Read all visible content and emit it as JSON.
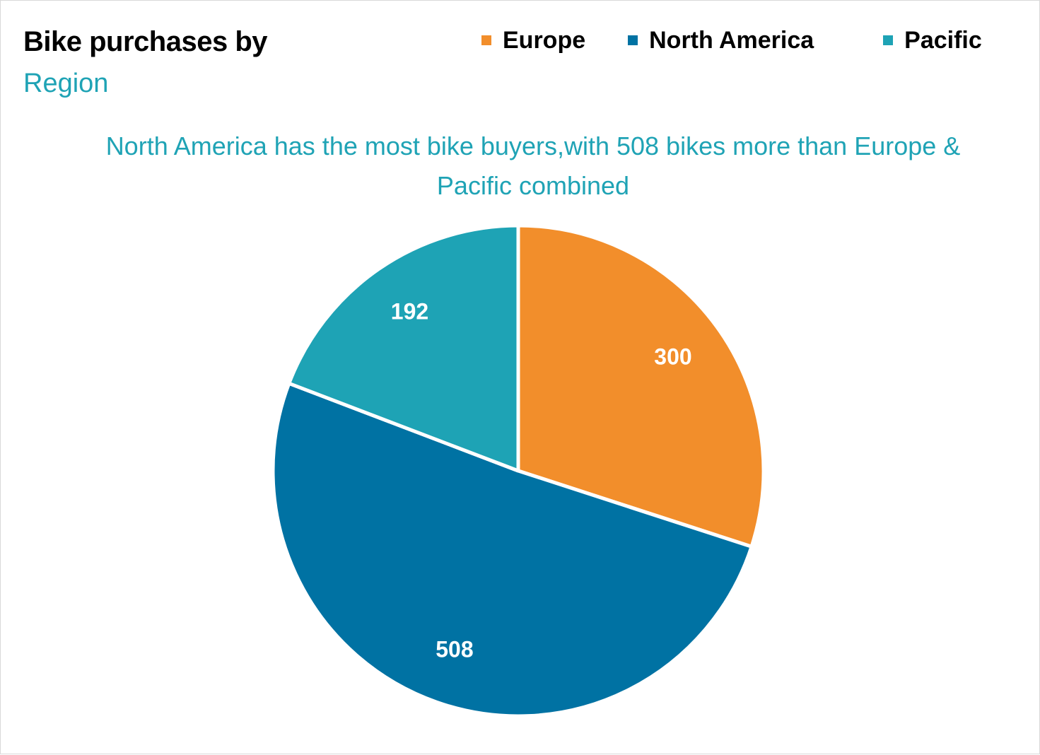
{
  "colors": {
    "europe": "#f28e2b",
    "north_america": "#0072a3",
    "pacific": "#1ea3b5",
    "accent_text": "#1fa3b5",
    "slice_border": "#ffffff",
    "data_label": "#ffffff"
  },
  "chart_data": {
    "type": "pie",
    "title": "Bike purchases by",
    "subtitle": "Region",
    "annotation": "North America has the most  bike buyers,with 508 bikes more than Europe & Pacific combined",
    "legend_placement": "top-right",
    "categories": [
      "Europe",
      "North America",
      "Pacific"
    ],
    "values": [
      300,
      508,
      192
    ],
    "data_labels": [
      "300",
      "508",
      "192"
    ],
    "slice_colors": [
      "#f28e2b",
      "#0072a3",
      "#1ea3b5"
    ]
  }
}
